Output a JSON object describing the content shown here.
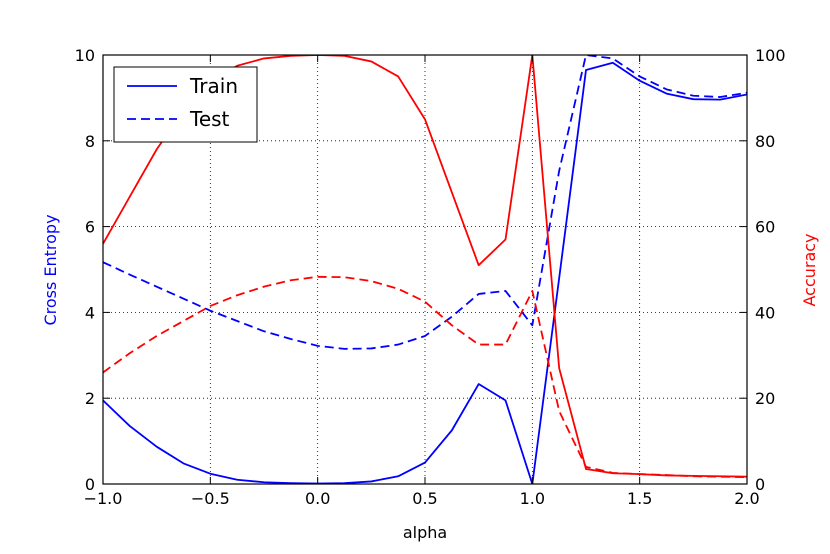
{
  "chart_data": {
    "type": "line",
    "xlabel": "alpha",
    "ylabel_left": "Cross Entropy",
    "ylabel_right": "Accuracy",
    "xlim": [
      -1.0,
      2.0
    ],
    "ylim_left": [
      0,
      10
    ],
    "ylim_right": [
      0,
      100
    ],
    "x_ticks": [
      "−1.0",
      "−0.5",
      "0.0",
      "0.5",
      "1.0",
      "1.5",
      "2.0"
    ],
    "x_tick_values": [
      -1.0,
      -0.5,
      0.0,
      0.5,
      1.0,
      1.5,
      2.0
    ],
    "y_left_ticks": [
      "0",
      "2",
      "4",
      "6",
      "8",
      "10"
    ],
    "y_left_tick_values": [
      0,
      2,
      4,
      6,
      8,
      10
    ],
    "y_right_ticks": [
      "0",
      "20",
      "40",
      "60",
      "80",
      "100"
    ],
    "y_right_tick_values": [
      0,
      20,
      40,
      60,
      80,
      100
    ],
    "grid": true,
    "legend": {
      "placement": "top-left",
      "entries": [
        {
          "label": "Train",
          "style": "solid"
        },
        {
          "label": "Test",
          "style": "dashed"
        }
      ]
    },
    "x": [
      -1.0,
      -0.875,
      -0.75,
      -0.625,
      -0.5,
      -0.375,
      -0.25,
      -0.125,
      0.0,
      0.125,
      0.25,
      0.375,
      0.5,
      0.625,
      0.75,
      0.875,
      1.0,
      1.125,
      1.25,
      1.375,
      1.5,
      1.625,
      1.75,
      1.875,
      2.0
    ],
    "series": [
      {
        "name": "Train",
        "metric": "cross_entropy",
        "axis": "left",
        "color": "#0000ff",
        "style": "solid",
        "values": [
          1.95,
          1.35,
          0.87,
          0.48,
          0.24,
          0.1,
          0.04,
          0.02,
          0.01,
          0.02,
          0.06,
          0.18,
          0.5,
          1.25,
          2.33,
          1.95,
          0.0,
          4.8,
          9.65,
          9.82,
          9.4,
          9.1,
          8.97,
          8.96,
          9.08
        ]
      },
      {
        "name": "Test",
        "metric": "cross_entropy",
        "axis": "left",
        "color": "#0000ff",
        "style": "dashed",
        "values": [
          5.17,
          4.88,
          4.6,
          4.32,
          4.04,
          3.8,
          3.56,
          3.38,
          3.22,
          3.15,
          3.16,
          3.25,
          3.45,
          3.9,
          4.43,
          4.5,
          3.7,
          7.3,
          10.0,
          9.92,
          9.5,
          9.2,
          9.05,
          9.02,
          9.12
        ]
      },
      {
        "name": "Train",
        "metric": "accuracy",
        "axis": "right",
        "color": "#ff0000",
        "style": "solid",
        "values": [
          56,
          67,
          78,
          87,
          94,
          97.5,
          99.2,
          99.8,
          100,
          99.8,
          98.5,
          95,
          85,
          68,
          51,
          57,
          100,
          27,
          3.5,
          2.5,
          2.3,
          2.0,
          1.9,
          1.8,
          1.7
        ]
      },
      {
        "name": "Test",
        "metric": "accuracy",
        "axis": "right",
        "color": "#ff0000",
        "style": "dashed",
        "values": [
          26,
          30.5,
          34.5,
          38,
          41.5,
          44,
          46,
          47.5,
          48.3,
          48.2,
          47.3,
          45.5,
          42.5,
          37,
          32.5,
          32.5,
          45,
          17,
          4.0,
          2.6,
          2.3,
          2.1,
          1.8,
          1.7,
          1.6
        ]
      }
    ],
    "colors": {
      "left_axis": "#0000ff",
      "right_axis": "#ff0000",
      "grid": "#000000"
    }
  }
}
